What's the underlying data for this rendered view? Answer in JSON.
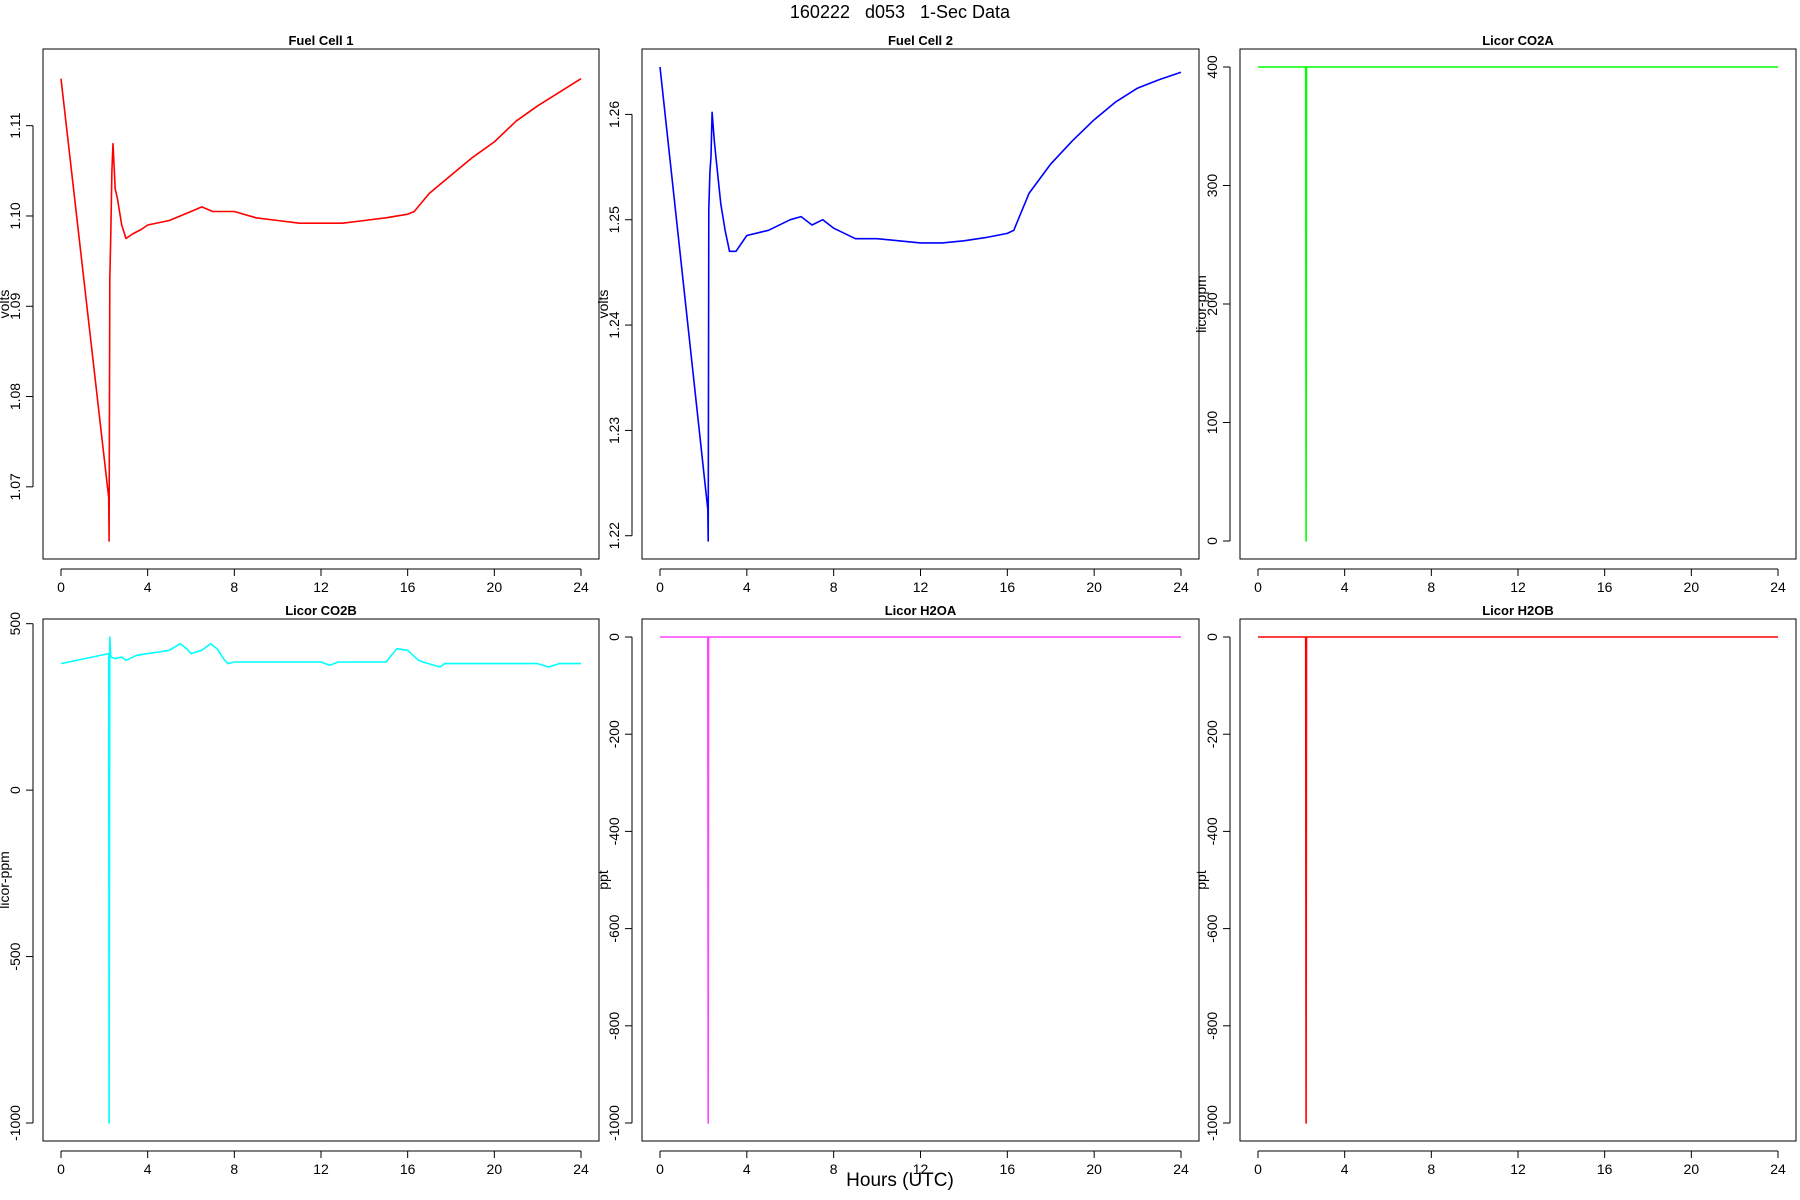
{
  "title": "160222   d053   1-Sec Data",
  "xlabel": "Hours (UTC)",
  "chart_data": [
    {
      "type": "line",
      "title": "Fuel Cell 1",
      "ylabel": "volts",
      "color": "#ff0000",
      "xlim": [
        0,
        24
      ],
      "ylim": [
        1.064,
        1.1165
      ],
      "xticks": [
        0,
        4,
        8,
        12,
        16,
        20,
        24
      ],
      "yticks": [
        1.07,
        1.08,
        1.09,
        1.1,
        1.11
      ],
      "ytick_labels": [
        "1.07",
        "1.08",
        "1.09",
        "1.10",
        "1.11"
      ],
      "series": [
        {
          "x": [
            0,
            2.2,
            2.22,
            2.25,
            2.3,
            2.35,
            2.4,
            2.5,
            2.6,
            2.8,
            3.0,
            3.3,
            3.7,
            4.0,
            5.0,
            6.0,
            6.5,
            7.0,
            8.0,
            9.0,
            10.0,
            11.0,
            12.0,
            13.0,
            14.0,
            15.0,
            16.0,
            16.3,
            17.0,
            18.0,
            19.0,
            20.0,
            21.0,
            22.0,
            23.0,
            24.0
          ],
          "y": [
            1.1152,
            1.0688,
            1.064,
            1.093,
            1.098,
            1.105,
            1.108,
            1.103,
            1.102,
            1.099,
            1.0975,
            1.098,
            1.0985,
            1.099,
            1.0995,
            1.1005,
            1.101,
            1.1005,
            1.1005,
            1.0998,
            1.0995,
            1.0992,
            1.0992,
            1.0992,
            1.0995,
            1.0998,
            1.1002,
            1.1005,
            1.1025,
            1.1045,
            1.1065,
            1.1082,
            1.1105,
            1.1122,
            1.1137,
            1.1152
          ]
        }
      ]
    },
    {
      "type": "line",
      "title": "Fuel Cell 2",
      "ylabel": "volts",
      "color": "#0000ff",
      "xlim": [
        0,
        24
      ],
      "ylim": [
        1.2195,
        1.2645
      ],
      "xticks": [
        0,
        4,
        8,
        12,
        16,
        20,
        24
      ],
      "yticks": [
        1.22,
        1.23,
        1.24,
        1.25,
        1.26
      ],
      "ytick_labels": [
        "1.22",
        "1.23",
        "1.24",
        "1.25",
        "1.26"
      ],
      "series": [
        {
          "x": [
            0,
            2.2,
            2.22,
            2.25,
            2.3,
            2.35,
            2.4,
            2.5,
            2.6,
            2.8,
            3.0,
            3.2,
            3.5,
            4.0,
            5.0,
            6.0,
            6.5,
            7.0,
            7.5,
            8.0,
            9.0,
            10.0,
            11.0,
            12.0,
            13.0,
            14.0,
            15.0,
            16.0,
            16.3,
            17.0,
            18.0,
            19.0,
            20.0,
            21.0,
            22.0,
            23.0,
            24.0
          ],
          "y": [
            1.2645,
            1.2225,
            1.2195,
            1.251,
            1.2545,
            1.256,
            1.2602,
            1.2575,
            1.2555,
            1.2515,
            1.249,
            1.247,
            1.247,
            1.2485,
            1.249,
            1.25,
            1.2503,
            1.2495,
            1.25,
            1.2492,
            1.2482,
            1.2482,
            1.248,
            1.2478,
            1.2478,
            1.248,
            1.2483,
            1.2487,
            1.249,
            1.2525,
            1.2553,
            1.2575,
            1.2595,
            1.2612,
            1.2625,
            1.2633,
            1.264
          ]
        }
      ]
    },
    {
      "type": "line",
      "title": "Licor CO2A",
      "ylabel": "licor-ppm",
      "color": "#00ff00",
      "xlim": [
        0,
        24
      ],
      "ylim": [
        0,
        400
      ],
      "xticks": [
        0,
        4,
        8,
        12,
        16,
        20,
        24
      ],
      "yticks": [
        0,
        100,
        200,
        300,
        400
      ],
      "ytick_labels": [
        "0",
        "100",
        "200",
        "300",
        "400"
      ],
      "series": [
        {
          "x": [
            0,
            2.2,
            2.22,
            2.24,
            24.0
          ],
          "y": [
            400,
            400,
            0,
            400,
            400
          ]
        }
      ]
    },
    {
      "type": "line",
      "title": "Licor CO2B",
      "ylabel": "licor-ppm",
      "color": "#00ffff",
      "xlim": [
        0,
        24
      ],
      "ylim": [
        -1000,
        460
      ],
      "xticks": [
        0,
        4,
        8,
        12,
        16,
        20,
        24
      ],
      "yticks": [
        -1000,
        -500,
        0,
        500
      ],
      "ytick_labels": [
        "-1000",
        "-500",
        "0",
        "500"
      ],
      "series": [
        {
          "x": [
            0,
            2.2,
            2.22,
            2.25,
            2.3,
            2.5,
            2.8,
            3.0,
            3.5,
            4.0,
            4.5,
            5.0,
            5.5,
            5.8,
            6.0,
            6.5,
            6.9,
            7.2,
            7.5,
            7.7,
            8.0,
            10.0,
            12.0,
            12.4,
            12.8,
            13.2,
            15.0,
            15.5,
            16.0,
            16.5,
            16.7,
            17.5,
            17.7,
            18.0,
            20.0,
            22.0,
            22.5,
            23.0,
            24.0
          ],
          "y": [
            380,
            410,
            -1000,
            460,
            400,
            395,
            400,
            390,
            405,
            410,
            415,
            420,
            440,
            425,
            410,
            420,
            440,
            425,
            395,
            380,
            385,
            385,
            385,
            375,
            385,
            385,
            385,
            425,
            420,
            390,
            385,
            370,
            380,
            380,
            380,
            380,
            370,
            380,
            380
          ]
        }
      ]
    },
    {
      "type": "line",
      "title": "Licor H2OA",
      "ylabel": "ppt",
      "color": "#ff44ff",
      "xlim": [
        0,
        24
      ],
      "ylim": [
        -1000,
        0
      ],
      "xticks": [
        0,
        4,
        8,
        12,
        16,
        20,
        24
      ],
      "yticks": [
        -1000,
        -800,
        -600,
        -400,
        -200,
        0
      ],
      "ytick_labels": [
        "-1000",
        "-800",
        "-600",
        "-400",
        "-200",
        "0"
      ],
      "series": [
        {
          "x": [
            0,
            2.2,
            2.22,
            2.24,
            24.0
          ],
          "y": [
            0,
            0,
            -1000,
            0,
            0
          ]
        }
      ]
    },
    {
      "type": "line",
      "title": "Licor H2OB",
      "ylabel": "ppt",
      "color": "#ff0000",
      "xlim": [
        0,
        24
      ],
      "ylim": [
        -1000,
        0
      ],
      "xticks": [
        0,
        4,
        8,
        12,
        16,
        20,
        24
      ],
      "yticks": [
        -1000,
        -800,
        -600,
        -400,
        -200,
        0
      ],
      "ytick_labels": [
        "-1000",
        "-800",
        "-600",
        "-400",
        "-200",
        "0"
      ],
      "series": [
        {
          "x": [
            0,
            2.2,
            2.22,
            2.24,
            24.0
          ],
          "y": [
            0,
            0,
            -1000,
            0,
            0
          ]
        }
      ]
    }
  ]
}
